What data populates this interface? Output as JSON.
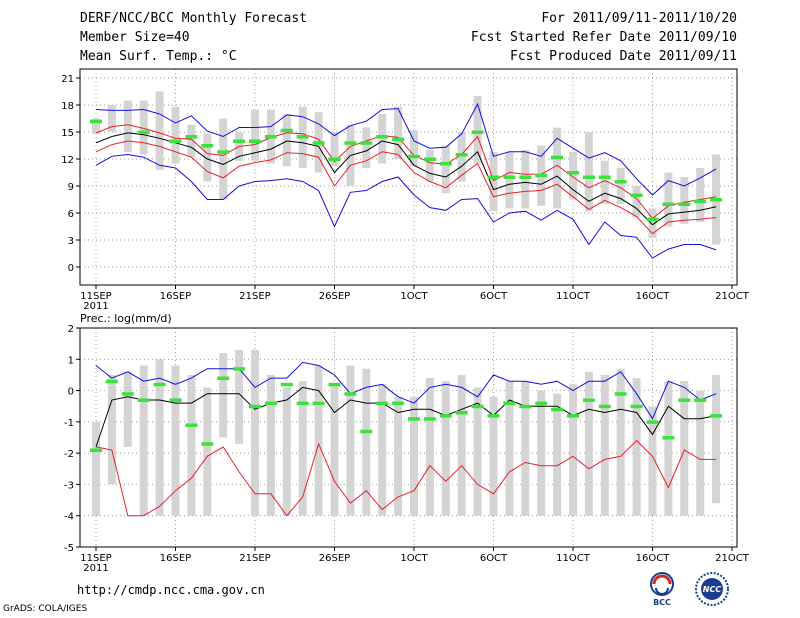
{
  "header": {
    "title": "DERF/NCC/BCC Monthly Forecast",
    "member_size": "Member Size=40",
    "variable": "Mean Surf. Temp.: °C",
    "period": "For 2011/09/11-2011/10/20",
    "started": "Fcst Started Refer Date 2011/09/10",
    "produced": "Fcst Produced Date 2011/09/11"
  },
  "footer": {
    "url": "http://cmdp.ncc.cma.gov.cn",
    "grads": "GrADS: COLA/IGES",
    "logo_left": "BCC",
    "logo_right": "NCC"
  },
  "colors": {
    "box": "#d4d4d4",
    "median": "#000000",
    "inner": "#e8202a",
    "outer": "#1010e0",
    "mean": "#3ce23c",
    "grid": "#777777"
  },
  "chart_data": [
    {
      "type": "line",
      "id": "temperature",
      "title": "Mean Surf. Temp.: °C",
      "ylabel": "°C",
      "xlim": [
        1,
        40
      ],
      "ylim": [
        -2,
        22
      ],
      "yticks": [
        0,
        3,
        6,
        9,
        12,
        15,
        18,
        21
      ],
      "xticks": [
        {
          "day": 1,
          "label": "11SEP",
          "sub": "2011"
        },
        {
          "day": 6,
          "label": "16SEP"
        },
        {
          "day": 11,
          "label": "21SEP"
        },
        {
          "day": 16,
          "label": "26SEP"
        },
        {
          "day": 21,
          "label": "1OCT"
        },
        {
          "day": 26,
          "label": "6OCT"
        },
        {
          "day": 31,
          "label": "11OCT"
        },
        {
          "day": 36,
          "label": "16OCT"
        },
        {
          "day": 41,
          "label": "21OCT"
        }
      ],
      "box_low": [
        14.8,
        15.0,
        12.8,
        12.5,
        10.8,
        11.5,
        12.2,
        9.5,
        7.5,
        11.8,
        11.8,
        11.5,
        11.2,
        11.0,
        10.5,
        11.2,
        9.0,
        11.0,
        11.5,
        12.0,
        11.2,
        9.5,
        8.2,
        9.5,
        11.5,
        6.2,
        6.5,
        6.5,
        6.8,
        6.5,
        7.5,
        6.2,
        7.0,
        7.0,
        5.5,
        3.2,
        4.5,
        4.8,
        5.0,
        2.5
      ],
      "box_high": [
        16.5,
        18.0,
        18.5,
        18.5,
        19.5,
        17.8,
        15.8,
        14.8,
        16.5,
        15.0,
        17.5,
        17.5,
        17.0,
        17.8,
        17.2,
        15.0,
        15.8,
        15.5,
        17.0,
        17.8,
        15.2,
        13.0,
        13.5,
        15.0,
        19.0,
        12.8,
        12.8,
        13.0,
        13.5,
        15.5,
        12.8,
        15.0,
        11.8,
        11.0,
        9.0,
        6.5,
        10.5,
        10.0,
        11.0,
        12.5
      ],
      "median": [
        13.8,
        14.5,
        14.9,
        14.7,
        14.3,
        13.8,
        13.3,
        12.0,
        11.4,
        12.3,
        12.7,
        13.1,
        14.0,
        13.8,
        13.4,
        10.5,
        12.4,
        12.9,
        14.0,
        13.6,
        11.3,
        10.4,
        10.0,
        11.2,
        12.8,
        8.6,
        9.2,
        9.4,
        9.2,
        10.1,
        8.6,
        7.3,
        8.2,
        7.6,
        6.5,
        4.7,
        5.9,
        6.1,
        6.3,
        6.7
      ],
      "inner_high": [
        14.9,
        15.6,
        15.8,
        15.4,
        14.9,
        14.3,
        14.2,
        12.6,
        12.4,
        13.4,
        13.6,
        14.4,
        14.9,
        14.8,
        14.2,
        11.7,
        13.4,
        14.0,
        14.6,
        14.4,
        12.4,
        11.6,
        11.4,
        12.5,
        14.5,
        9.6,
        10.5,
        10.3,
        10.3,
        11.3,
        10.0,
        8.8,
        9.6,
        8.8,
        7.6,
        5.4,
        6.8,
        7.2,
        7.5,
        7.8
      ],
      "inner_low": [
        12.8,
        13.6,
        14.0,
        13.8,
        13.4,
        12.8,
        12.2,
        10.6,
        9.9,
        11.2,
        11.6,
        11.9,
        12.7,
        12.6,
        12.2,
        9.0,
        11.3,
        11.8,
        12.8,
        12.5,
        10.5,
        9.5,
        8.8,
        10.2,
        11.5,
        7.8,
        8.2,
        8.4,
        8.5,
        9.2,
        7.8,
        6.4,
        7.4,
        6.6,
        5.6,
        3.7,
        5.0,
        5.2,
        5.3,
        5.5
      ],
      "outer_high": [
        17.5,
        17.4,
        17.4,
        17.5,
        17.0,
        16.0,
        16.8,
        15.1,
        14.5,
        15.5,
        15.5,
        15.6,
        16.9,
        16.7,
        15.9,
        14.6,
        15.7,
        16.2,
        17.5,
        17.6,
        14.0,
        13.2,
        13.3,
        14.8,
        18.1,
        12.3,
        12.8,
        12.8,
        12.3,
        14.3,
        13.2,
        12.1,
        12.7,
        11.8,
        9.8,
        8.0,
        9.6,
        9.0,
        9.9,
        10.9
      ],
      "outer_low": [
        11.3,
        12.3,
        12.5,
        12.2,
        11.3,
        11.0,
        9.5,
        7.5,
        7.5,
        9.0,
        9.5,
        9.6,
        9.8,
        9.5,
        8.5,
        4.5,
        8.3,
        8.5,
        9.5,
        10.0,
        8.0,
        6.6,
        6.3,
        7.5,
        7.6,
        5.0,
        6.0,
        6.2,
        5.2,
        6.3,
        5.3,
        2.5,
        5.0,
        3.5,
        3.3,
        1.0,
        2.0,
        2.5,
        2.5,
        1.9
      ],
      "mean": [
        16.2,
        null,
        null,
        15.0,
        null,
        14.0,
        14.5,
        13.5,
        12.8,
        14.0,
        14.0,
        14.5,
        15.2,
        14.5,
        13.8,
        12.0,
        13.8,
        13.8,
        14.5,
        14.2,
        12.3,
        12.0,
        11.5,
        12.5,
        15.0,
        10.0,
        10.0,
        10.0,
        10.2,
        12.2,
        10.5,
        10.0,
        10.0,
        9.5,
        8.0,
        5.3,
        7.0,
        7.0,
        7.3,
        7.5
      ]
    },
    {
      "type": "line",
      "id": "precipitation",
      "title": "Prec.: log(mm/d)",
      "ylabel": "log(mm/d)",
      "xlim": [
        1,
        40
      ],
      "ylim": [
        -5,
        2
      ],
      "yticks": [
        -5,
        -4,
        -3,
        -2,
        -1,
        0,
        1,
        2
      ],
      "xticks": [
        {
          "day": 1,
          "label": "11SEP",
          "sub": "2011"
        },
        {
          "day": 6,
          "label": "16SEP"
        },
        {
          "day": 11,
          "label": "21SEP"
        },
        {
          "day": 16,
          "label": "26SEP"
        },
        {
          "day": 21,
          "label": "1OCT"
        },
        {
          "day": 26,
          "label": "6OCT"
        },
        {
          "day": 31,
          "label": "11OCT"
        },
        {
          "day": 36,
          "label": "16OCT"
        },
        {
          "day": 41,
          "label": "21OCT"
        }
      ],
      "box_low": [
        -4,
        -3.0,
        -1.8,
        -4,
        -4,
        -4,
        -4,
        -4,
        -1.5,
        -1.7,
        -4,
        -4,
        -4,
        -4,
        -4,
        -4,
        -4,
        -4,
        -4,
        -4,
        -4,
        -4,
        -4,
        -4,
        -4,
        -4,
        -4,
        -4,
        -4,
        -4,
        -4,
        -4,
        -4,
        -4,
        -4,
        -4,
        -4,
        -4,
        -4,
        -3.6
      ],
      "box_high": [
        -1.0,
        0.5,
        0.6,
        0.8,
        1.0,
        0.8,
        0.5,
        0.1,
        1.2,
        1.3,
        1.3,
        0.5,
        0.1,
        0.3,
        0.8,
        0.2,
        0.8,
        0.7,
        0.2,
        -0.2,
        -0.2,
        0.4,
        0.3,
        0.5,
        0.1,
        -0.2,
        0.3,
        0.3,
        0.0,
        -0.1,
        0.2,
        0.6,
        0.5,
        0.7,
        0.4,
        -0.5,
        0.3,
        0.3,
        0.0,
        0.5
      ],
      "median": [
        -1.8,
        -0.3,
        -0.2,
        -0.3,
        -0.3,
        -0.4,
        -0.4,
        -0.1,
        -0.1,
        -0.1,
        -0.6,
        -0.4,
        -0.3,
        0.1,
        0.0,
        -0.7,
        -0.3,
        -0.4,
        -0.4,
        -0.7,
        -0.6,
        -0.6,
        -0.8,
        -0.6,
        -0.4,
        -0.8,
        -0.3,
        -0.5,
        -0.5,
        -0.5,
        -0.8,
        -0.6,
        -0.7,
        -0.6,
        -0.7,
        -1.4,
        -0.5,
        -0.9,
        -0.9,
        -0.8
      ],
      "inner_low": [
        -1.8,
        -1.9,
        -4.0,
        -4.0,
        -3.7,
        -3.2,
        -2.8,
        -2.1,
        -1.8,
        -2.6,
        -3.3,
        -3.3,
        -4.0,
        -3.4,
        -1.7,
        -2.9,
        -3.6,
        -3.2,
        -3.8,
        -3.4,
        -3.2,
        -2.4,
        -2.9,
        -2.4,
        -3.0,
        -3.3,
        -2.6,
        -2.3,
        -2.4,
        -2.4,
        -2.1,
        -2.5,
        -2.2,
        -2.1,
        -1.6,
        -2.1,
        -3.1,
        -1.9,
        -2.2,
        -2.2
      ],
      "outer_high": [
        0.8,
        0.4,
        0.6,
        0.3,
        0.4,
        0.2,
        0.4,
        0.7,
        0.7,
        0.7,
        0.1,
        0.4,
        0.4,
        0.9,
        0.8,
        0.5,
        -0.1,
        0.1,
        0.2,
        -0.2,
        -0.4,
        0.1,
        0.2,
        0.1,
        -0.2,
        0.5,
        0.3,
        0.3,
        0.2,
        0.3,
        0.0,
        0.3,
        0.3,
        0.6,
        -0.1,
        -0.9,
        0.3,
        0.1,
        -0.3,
        -0.1
      ],
      "mean": [
        -1.9,
        0.3,
        -0.1,
        -0.3,
        0.2,
        -0.3,
        -1.1,
        -1.7,
        0.4,
        0.7,
        -0.5,
        -0.4,
        0.2,
        -0.4,
        -0.4,
        0.2,
        -0.1,
        -1.3,
        -0.4,
        -0.4,
        -0.9,
        -0.9,
        -0.8,
        -0.7,
        -0.5,
        -0.8,
        -0.4,
        -0.5,
        -0.4,
        -0.6,
        -0.8,
        -0.3,
        -0.5,
        -0.1,
        -0.5,
        -1.0,
        -1.5,
        -0.3,
        -0.3,
        -0.8
      ]
    }
  ]
}
